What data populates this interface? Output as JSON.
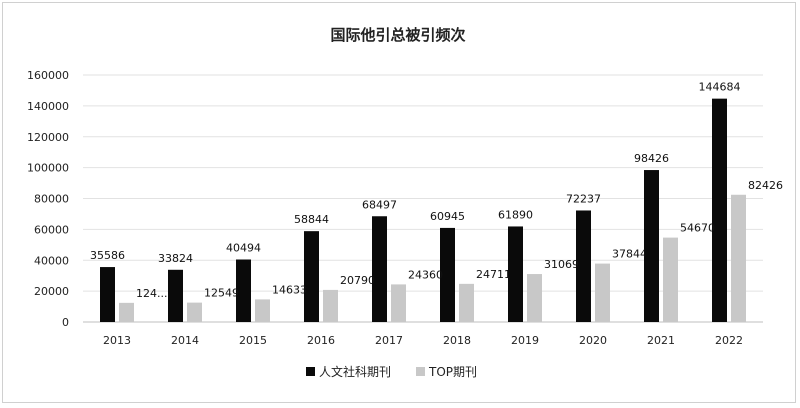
{
  "chart_data": {
    "type": "bar",
    "title": "国际他引总被引频次",
    "xlabel": "",
    "ylabel": "",
    "ylim": [
      0,
      160000
    ],
    "yticks": [
      "0",
      "20000",
      "40000",
      "60000",
      "80000",
      "100000",
      "120000",
      "140000",
      "160000"
    ],
    "grid": true,
    "legend_position": "bottom",
    "categories": [
      "2013",
      "2014",
      "2015",
      "2016",
      "2017",
      "2018",
      "2019",
      "2020",
      "2021",
      "2022"
    ],
    "series": [
      {
        "name": "人文社科期刊",
        "color": "#0a0a0a",
        "values": [
          35586,
          33824,
          40494,
          58844,
          68497,
          60945,
          61890,
          72237,
          98426,
          144684
        ],
        "labels": [
          "35586",
          "33824",
          "40494",
          "58844",
          "68497",
          "60945",
          "61890",
          "72237",
          "98426",
          "144684"
        ]
      },
      {
        "name": "TOP期刊",
        "color": "#c8c8c8",
        "values": [
          12400,
          12549,
          14633,
          20790,
          24360,
          24711,
          31069,
          37844,
          54670,
          82426
        ],
        "labels": [
          "124...",
          "12549",
          "14633",
          "20790",
          "24360",
          "24711",
          "31069",
          "37844",
          "54670",
          "82426"
        ]
      }
    ]
  }
}
